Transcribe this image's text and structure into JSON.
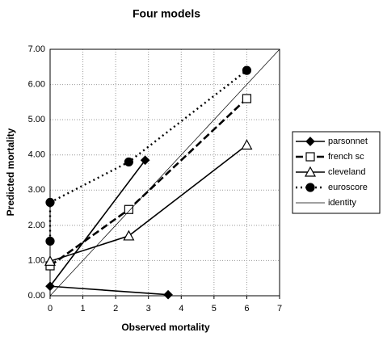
{
  "chart_data": {
    "type": "line",
    "title": "Four models",
    "x_label": "Observed mortality",
    "y_label": "Predicted mortality",
    "xlim": [
      0,
      7
    ],
    "xticks": [
      0,
      1,
      2,
      3,
      4,
      5,
      6,
      7
    ],
    "ylim": [
      0,
      7
    ],
    "yticks": [
      {
        "value": 0,
        "label": "0.00"
      },
      {
        "value": 1,
        "label": "1.00"
      },
      {
        "value": 2,
        "label": "2.00"
      },
      {
        "value": 3,
        "label": "3.00"
      },
      {
        "value": 4,
        "label": "4.00"
      },
      {
        "value": 5,
        "label": "5.00"
      },
      {
        "value": 6,
        "label": "6.00"
      },
      {
        "value": 7,
        "label": "7.00"
      }
    ],
    "grid": true,
    "legend": "right",
    "series": [
      {
        "name": "parsonnet",
        "color": "#000000",
        "marker": "diamond",
        "line_style": "solid",
        "x": [
          3.6,
          0,
          2.9
        ],
        "values": [
          0.03,
          0.27,
          3.85
        ]
      },
      {
        "name": "french sc",
        "color": "#000000",
        "marker": "square",
        "line_style": "dashed",
        "x": [
          0,
          2.4,
          6
        ],
        "values": [
          0.85,
          2.45,
          5.6
        ]
      },
      {
        "name": "cleveland",
        "color": "#000000",
        "marker": "triangle",
        "line_style": "solid",
        "x": [
          0,
          2.4,
          6
        ],
        "values": [
          0.98,
          1.7,
          4.28
        ]
      },
      {
        "name": "euroscore",
        "color": "#000000",
        "marker": "circle",
        "line_style": "dotted",
        "x": [
          0,
          0,
          2.4,
          6
        ],
        "values": [
          1.55,
          2.65,
          3.8,
          6.4
        ]
      },
      {
        "name": "identity",
        "color": "#000000",
        "marker": "none",
        "line_style": "thin",
        "x": [
          0,
          7
        ],
        "values": [
          0,
          7
        ]
      }
    ]
  }
}
